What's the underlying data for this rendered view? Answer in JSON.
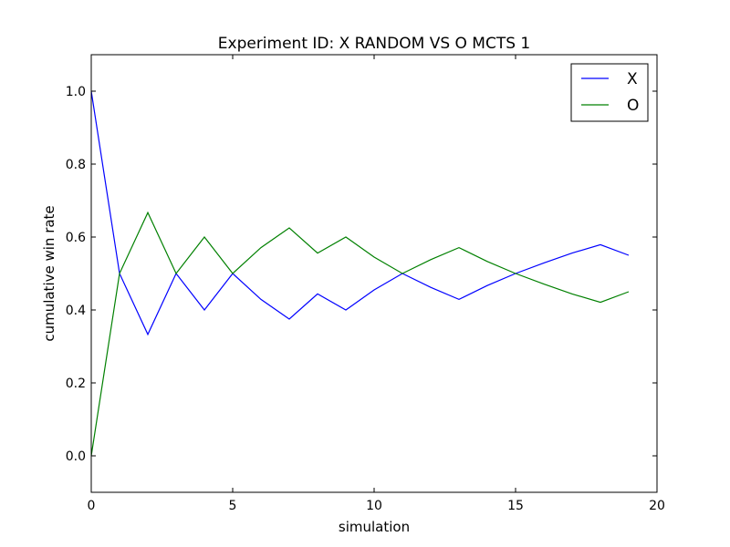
{
  "chart_data": {
    "type": "line",
    "title": "Experiment ID: X RANDOM VS O MCTS 1",
    "xlabel": "simulation",
    "ylabel": "cumulative win rate",
    "xlim": [
      0,
      20
    ],
    "ylim": [
      -0.1,
      1.1
    ],
    "xticks": [
      "0",
      "5",
      "10",
      "15",
      "20"
    ],
    "yticks": [
      "0.0",
      "0.2",
      "0.4",
      "0.6",
      "0.8",
      "1.0"
    ],
    "grid": false,
    "legend_position": "top-right",
    "x": [
      0,
      1,
      2,
      3,
      4,
      5,
      6,
      7,
      8,
      9,
      10,
      11,
      12,
      13,
      14,
      15,
      16,
      17,
      18,
      19
    ],
    "series": [
      {
        "name": "X",
        "color": "#0000ff",
        "values": [
          1.0,
          0.5,
          0.333,
          0.5,
          0.4,
          0.5,
          0.429,
          0.375,
          0.444,
          0.4,
          0.455,
          0.5,
          0.462,
          0.429,
          0.467,
          0.5,
          0.529,
          0.556,
          0.579,
          0.55
        ]
      },
      {
        "name": "O",
        "color": "#008000",
        "values": [
          0.0,
          0.5,
          0.667,
          0.5,
          0.6,
          0.5,
          0.571,
          0.625,
          0.556,
          0.6,
          0.545,
          0.5,
          0.538,
          0.571,
          0.533,
          0.5,
          0.471,
          0.444,
          0.421,
          0.45
        ]
      }
    ]
  }
}
